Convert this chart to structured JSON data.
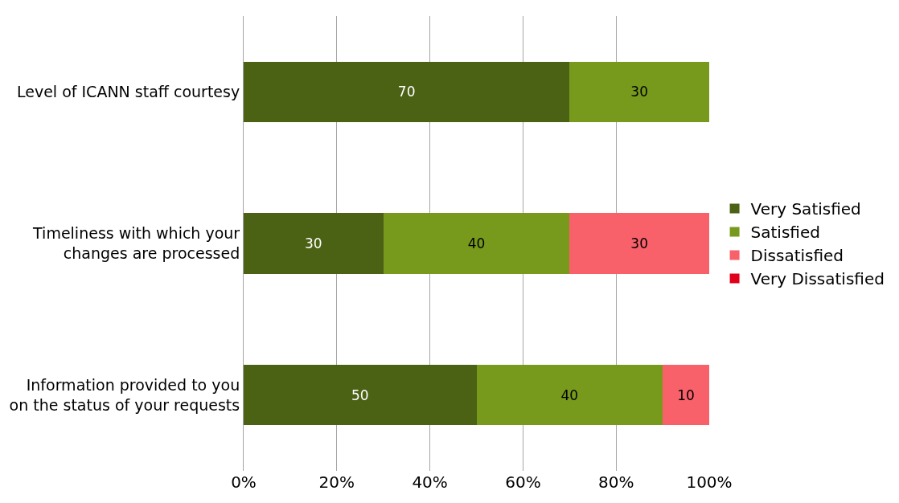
{
  "chart_data": {
    "type": "bar",
    "orientation": "horizontal",
    "stacked": true,
    "categories": [
      "Level of ICANN staff courtesy",
      "Timeliness with which your\nchanges are processed",
      "Information provided to you\non the status of your requests"
    ],
    "series": [
      {
        "name": "Very Satisfied",
        "color": "#4b6114",
        "values": [
          70,
          30,
          50
        ],
        "value_labels": [
          "70",
          "30",
          "50"
        ]
      },
      {
        "name": "Satisfied",
        "color": "#779a1c",
        "values": [
          30,
          40,
          40
        ],
        "value_labels": [
          "30",
          "40",
          "40"
        ]
      },
      {
        "name": "Dissatisfied",
        "color": "#f8606a",
        "values": [
          0,
          30,
          10
        ],
        "value_labels": [
          null,
          "30",
          "10"
        ]
      },
      {
        "name": "Very Dissatisfied",
        "color": "#e0001b",
        "values": [
          0,
          0,
          0
        ],
        "value_labels": [
          null,
          null,
          null
        ]
      }
    ],
    "xlim": [
      0,
      100
    ],
    "xticks": [
      {
        "value": 0,
        "label": "0%"
      },
      {
        "value": 20,
        "label": "20%"
      },
      {
        "value": 40,
        "label": "40%"
      },
      {
        "value": 60,
        "label": "60%"
      },
      {
        "value": 80,
        "label": "80%"
      },
      {
        "value": 100,
        "label": "100%"
      }
    ],
    "grid": "x",
    "legend": "right"
  }
}
